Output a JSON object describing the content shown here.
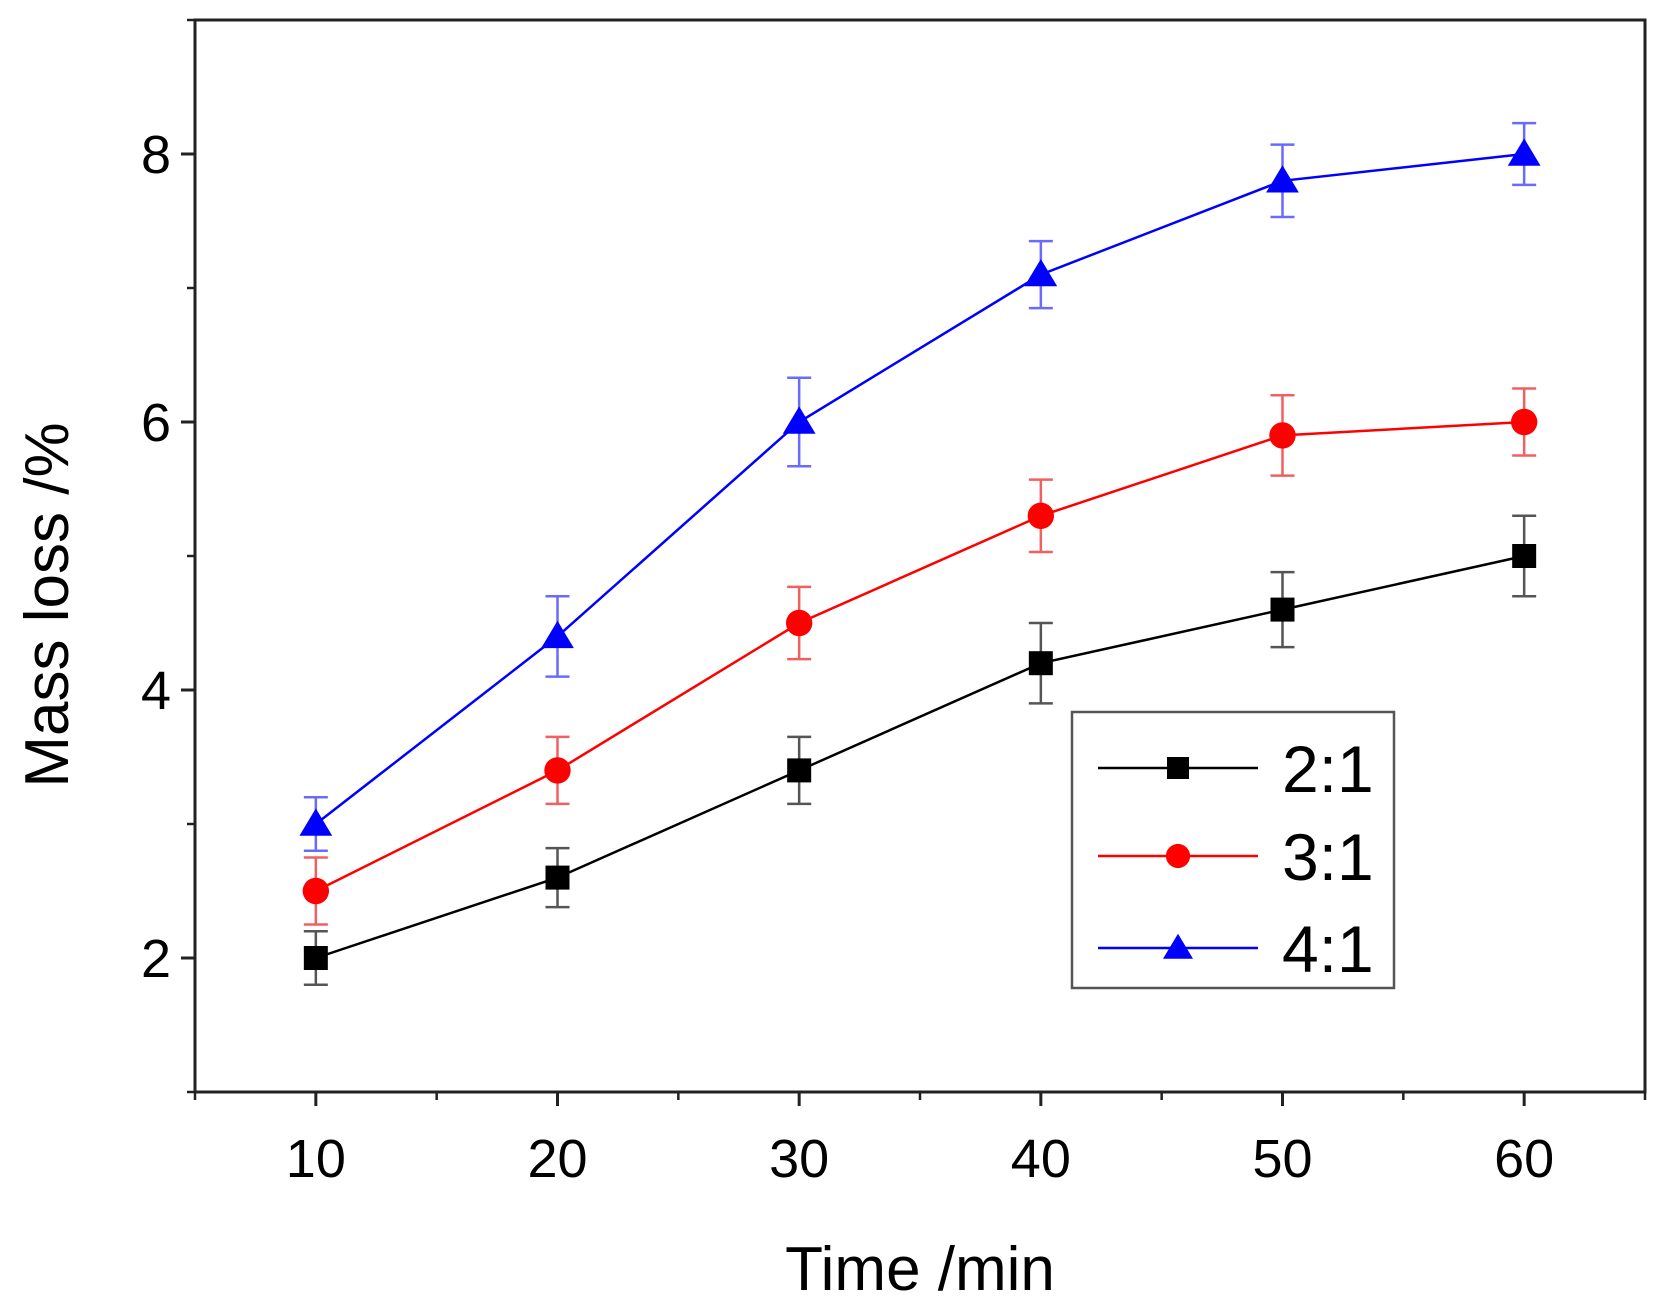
{
  "chart_data": {
    "type": "line",
    "title": "",
    "xlabel": "Time /min",
    "ylabel": "Mass loss /%",
    "x": [
      10,
      20,
      30,
      40,
      50,
      60
    ],
    "xticks": [
      "10",
      "20",
      "30",
      "40",
      "50",
      "60"
    ],
    "yticks": [
      "2",
      "4",
      "6",
      "8"
    ],
    "xlim": [
      5,
      65
    ],
    "ylim": [
      1,
      9
    ],
    "grid": false,
    "legend_position": "lower-right",
    "series": [
      {
        "name": "2:1",
        "color": "#000000",
        "marker": "square",
        "values": [
          2.0,
          2.6,
          3.4,
          4.2,
          4.6,
          5.0
        ],
        "errors": [
          0.2,
          0.22,
          0.25,
          0.3,
          0.28,
          0.3
        ]
      },
      {
        "name": "3:1",
        "color": "#ff0000",
        "marker": "circle",
        "values": [
          2.5,
          3.4,
          4.5,
          5.3,
          5.9,
          6.0
        ],
        "errors": [
          0.25,
          0.25,
          0.27,
          0.27,
          0.3,
          0.25
        ]
      },
      {
        "name": "4:1",
        "color": "#0000ff",
        "marker": "triangle",
        "values": [
          3.0,
          4.4,
          6.0,
          7.1,
          7.8,
          8.0
        ],
        "errors": [
          0.2,
          0.3,
          0.33,
          0.25,
          0.27,
          0.23
        ]
      }
    ]
  }
}
